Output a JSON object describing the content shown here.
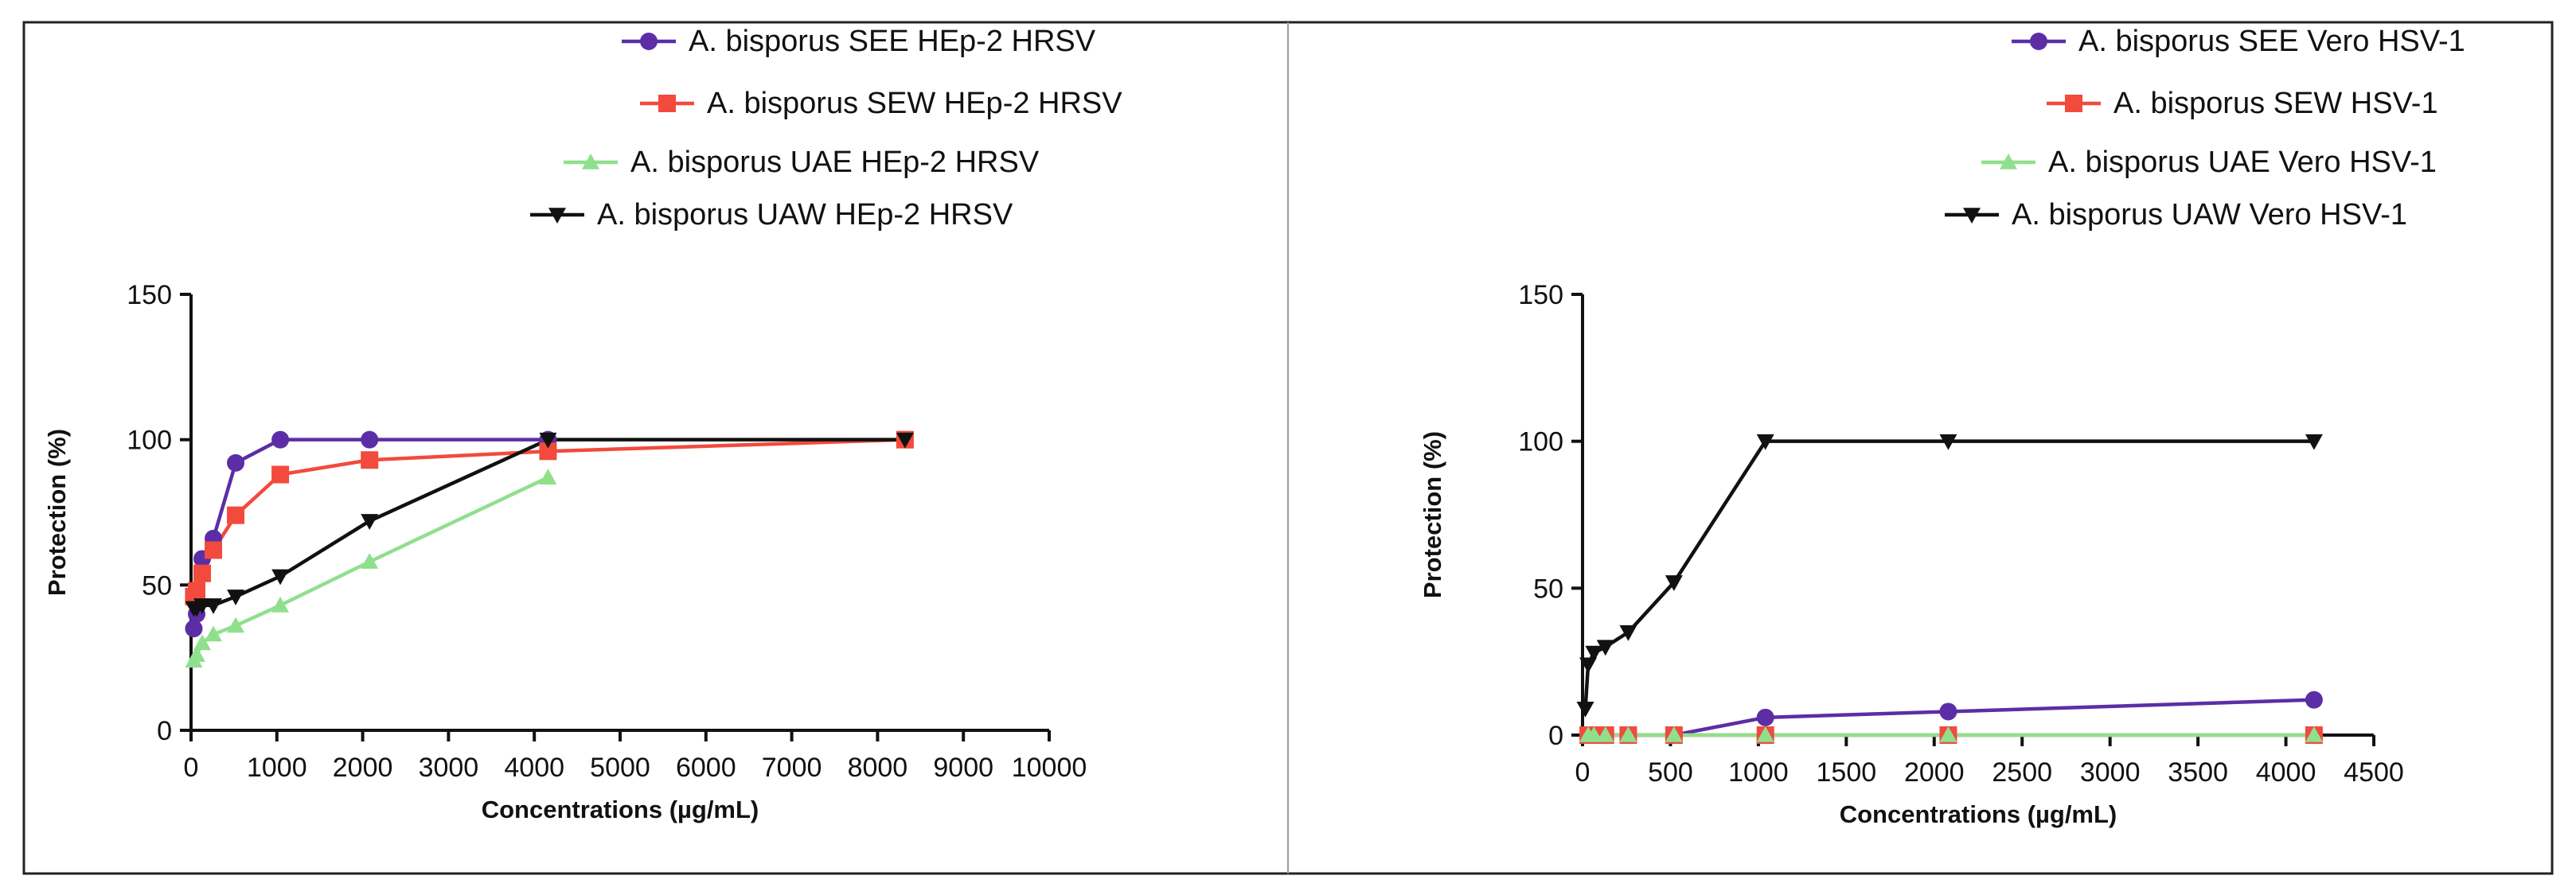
{
  "chart_data": [
    {
      "type": "line",
      "xlabel": "Concentrations (µg/mL)",
      "ylabel": "Protection (%)",
      "xlim": [
        0,
        10000
      ],
      "ylim": [
        0,
        150
      ],
      "xticks": [
        0,
        1000,
        2000,
        3000,
        4000,
        5000,
        6000,
        7000,
        8000,
        9000,
        10000
      ],
      "yticks": [
        0,
        50,
        100,
        150
      ],
      "grid": false,
      "legend_position": "top",
      "series": [
        {
          "name": "A. bisporus SEE HEp-2 HRSV",
          "color": "#5b2ea6",
          "marker": "circle",
          "x": [
            32,
            65,
            130,
            260,
            520,
            1040,
            2080,
            4160
          ],
          "y": [
            35,
            40,
            59,
            66,
            92,
            100,
            100,
            100
          ]
        },
        {
          "name": "A. bisporus SEW HEp-2 HRSV",
          "color": "#f24a3d",
          "marker": "square",
          "x": [
            32,
            65,
            130,
            260,
            520,
            1040,
            2080,
            4160,
            8320
          ],
          "y": [
            46,
            48,
            54,
            62,
            74,
            88,
            93,
            96,
            100
          ]
        },
        {
          "name": "A. bisporus UAE HEp-2 HRSV",
          "color": "#8fe08c",
          "marker": "triangle-up",
          "x": [
            32,
            65,
            130,
            260,
            520,
            1040,
            2080,
            4160
          ],
          "y": [
            24,
            26,
            30,
            33,
            36,
            43,
            58,
            87
          ]
        },
        {
          "name": "A. bisporus UAW HEp-2 HRSV",
          "color": "#111111",
          "marker": "triangle-down",
          "x": [
            32,
            65,
            130,
            260,
            520,
            1040,
            2080,
            4160,
            8320
          ],
          "y": [
            42,
            42,
            43,
            43,
            46,
            53,
            72,
            100,
            100
          ]
        }
      ]
    },
    {
      "type": "line",
      "xlabel": "Concentrations (µg/mL)",
      "ylabel": "Protection (%)",
      "xlim": [
        0,
        4500
      ],
      "ylim": [
        0,
        150
      ],
      "xticks": [
        0,
        500,
        1000,
        1500,
        2000,
        2500,
        3000,
        3500,
        4000,
        4500
      ],
      "yticks": [
        0,
        50,
        100,
        150
      ],
      "grid": false,
      "legend_position": "top-right",
      "series": [
        {
          "name": "A. bisporus SEE Vero HSV-1",
          "color": "#5b2ea6",
          "marker": "circle",
          "x": [
            32,
            65,
            130,
            260,
            520,
            1040,
            2080,
            4160
          ],
          "y": [
            0,
            0,
            0,
            0,
            0,
            6,
            8,
            12
          ]
        },
        {
          "name": "A. bisporus SEW HSV-1",
          "color": "#f24a3d",
          "marker": "square",
          "x": [
            32,
            65,
            130,
            260,
            520,
            1040,
            2080,
            4160
          ],
          "y": [
            0,
            0,
            0,
            0,
            0,
            0,
            0,
            0
          ]
        },
        {
          "name": "A. bisporus UAE Vero HSV-1",
          "color": "#8fe08c",
          "marker": "triangle-up",
          "x": [
            32,
            65,
            130,
            260,
            520,
            1040,
            2080,
            4160
          ],
          "y": [
            0,
            0,
            0,
            0,
            0,
            0,
            0,
            0
          ]
        },
        {
          "name": "A. bisporus UAW Vero HSV-1",
          "color": "#111111",
          "marker": "triangle-down",
          "x": [
            16,
            32,
            65,
            130,
            260,
            520,
            1040,
            2080,
            4160
          ],
          "y": [
            9,
            24,
            28,
            30,
            35,
            52,
            100,
            100,
            100
          ]
        }
      ]
    }
  ]
}
